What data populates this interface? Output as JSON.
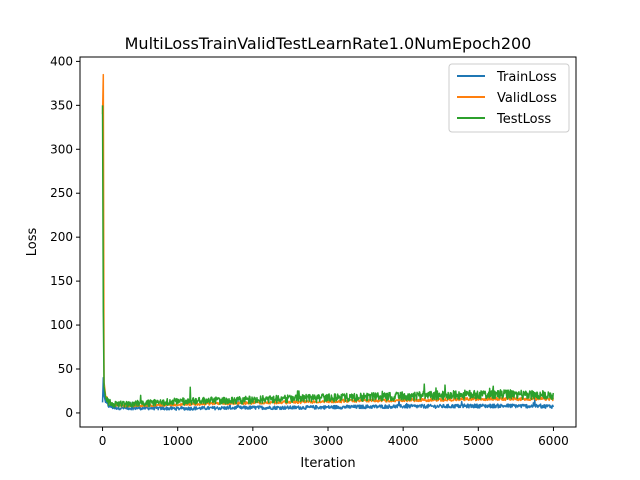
{
  "chart_data": {
    "type": "line",
    "title": "MultiLossTrainValidTestLearnRate1.0NumEpoch200",
    "xlabel": "Iteration",
    "ylabel": "Loss",
    "xlim": [
      -300,
      6300
    ],
    "ylim": [
      -16,
      405
    ],
    "x_ticks": [
      0,
      1000,
      2000,
      3000,
      4000,
      5000,
      6000
    ],
    "x_tick_labels": [
      "0",
      "1000",
      "2000",
      "3000",
      "4000",
      "5000",
      "6000"
    ],
    "y_ticks": [
      0,
      50,
      100,
      150,
      200,
      250,
      300,
      350,
      400
    ],
    "y_tick_labels": [
      "0",
      "50",
      "100",
      "150",
      "200",
      "250",
      "300",
      "350",
      "400"
    ],
    "grid": false,
    "legend_position": "top-right",
    "series": [
      {
        "name": "TrainLoss",
        "color": "#1f77b4",
        "x": [
          0,
          10,
          20,
          40,
          80,
          150,
          300,
          600,
          1000,
          1500,
          2000,
          2500,
          3000,
          3500,
          4000,
          4500,
          5000,
          5500,
          6000
        ],
        "values": [
          12,
          40,
          20,
          12,
          8,
          6,
          5.5,
          5.5,
          5,
          5.5,
          6,
          6,
          6.5,
          7,
          7.5,
          7.5,
          8,
          8,
          7.5
        ]
      },
      {
        "name": "ValidLoss",
        "color": "#ff7f0e",
        "x": [
          0,
          10,
          20,
          40,
          80,
          150,
          300,
          600,
          1000,
          1500,
          2000,
          2500,
          3000,
          3500,
          4000,
          4500,
          5000,
          5500,
          6000
        ],
        "values": [
          340,
          385,
          35,
          20,
          12,
          9,
          8,
          8.5,
          9.5,
          10.5,
          11.5,
          12,
          13,
          14,
          14.5,
          15,
          16,
          16,
          16
        ]
      },
      {
        "name": "TestLoss",
        "color": "#2ca02c",
        "x": [
          0,
          10,
          20,
          40,
          80,
          150,
          300,
          600,
          1000,
          1500,
          2000,
          2500,
          3000,
          3500,
          4000,
          4500,
          5000,
          5500,
          6000
        ],
        "values": [
          350,
          115,
          30,
          18,
          12,
          10,
          10,
          11,
          13,
          14,
          15,
          16,
          17,
          18,
          19,
          20,
          21,
          21,
          20
        ]
      }
    ]
  }
}
